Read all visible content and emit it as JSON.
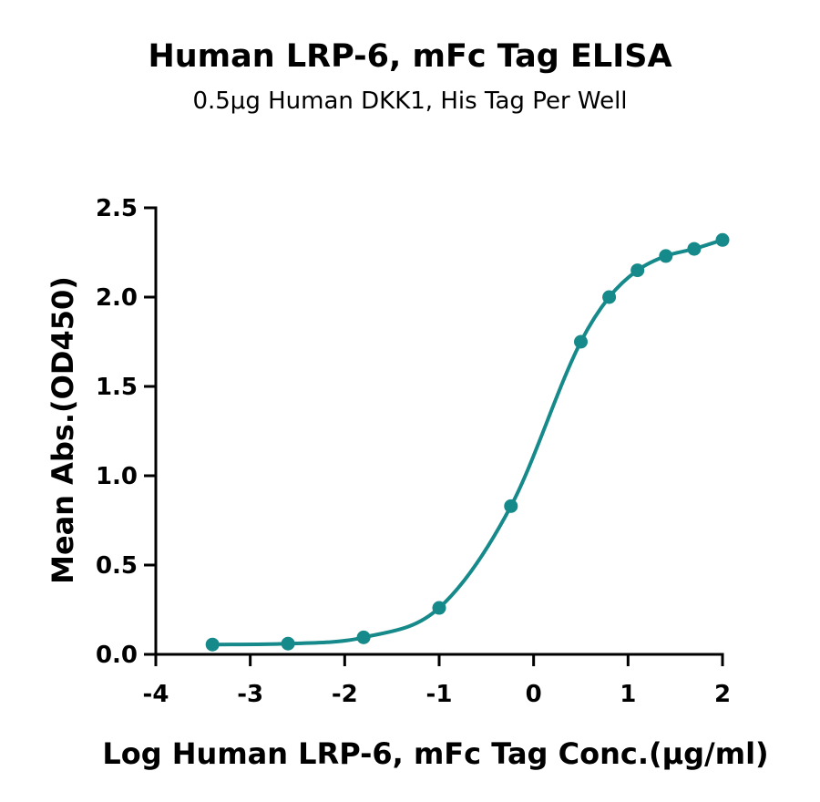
{
  "chart_data": {
    "type": "scatter",
    "title": "Human LRP-6, mFc Tag ELISA",
    "subtitle": "0.5μg Human DKK1, His Tag Per Well",
    "xlabel": "Log Human LRP-6, mFc Tag Conc.(μg/ml)",
    "ylabel": "Mean Abs.(OD450)",
    "xlim": [
      -4,
      2
    ],
    "ylim": [
      0,
      2.5
    ],
    "xticks": [
      -4,
      -3,
      -2,
      -1,
      0,
      1,
      2
    ],
    "xtick_labels": [
      "-4",
      "-3",
      "-2",
      "-1",
      "0",
      "1",
      "2"
    ],
    "yticks": [
      0,
      0.5,
      1,
      1.5,
      2,
      2.5
    ],
    "ytick_labels": [
      "0.0",
      "0.5",
      "1.0",
      "1.5",
      "2.0",
      "2.5"
    ],
    "grid": false,
    "color": "#16898A",
    "series": [
      {
        "x": [
          -3.4,
          -2.6,
          -1.8,
          -1.0,
          -0.24,
          0.5,
          0.8,
          1.1,
          1.4,
          1.7,
          2.0
        ],
        "y": [
          0.055,
          0.06,
          0.095,
          0.26,
          0.83,
          1.75,
          2.0,
          2.15,
          2.23,
          2.27,
          2.32
        ]
      }
    ]
  }
}
